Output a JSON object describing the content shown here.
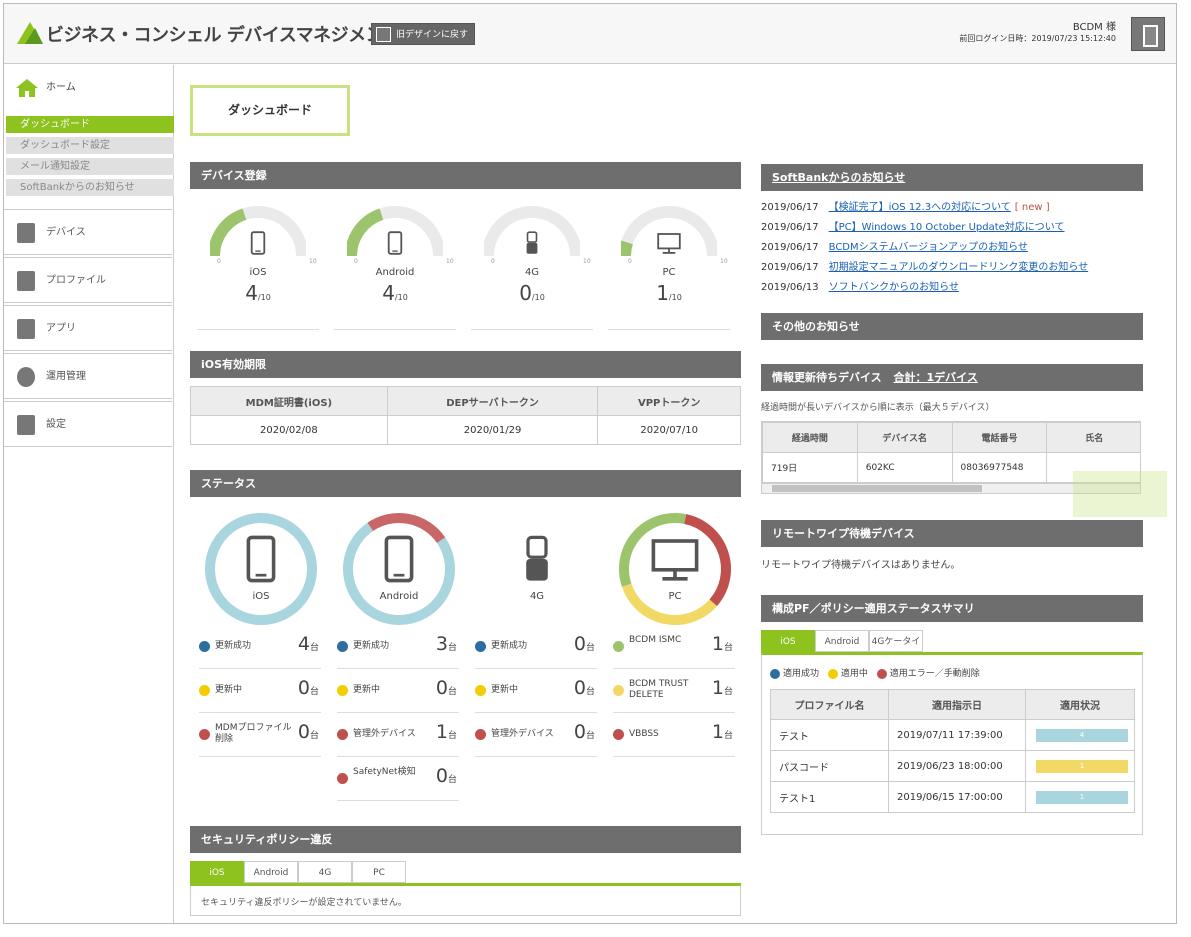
{
  "header": {
    "app_title": "ビジネス・コンシェル デバイスマネジメント",
    "old_design_label": "旧デザインに戻す",
    "user": "BCDM 様",
    "last_login": "前回ログイン日時：2019/07/23 15:12:40"
  },
  "sidebar": {
    "home": "ホーム",
    "sub_items": [
      "ダッシュボード",
      "ダッシュボード設定",
      "メール通知設定",
      "SoftBankからのお知らせ"
    ],
    "nav_items": [
      "デバイス",
      "プロファイル",
      "アプリ",
      "運用管理",
      "設定"
    ]
  },
  "page_title": "ダッシュボード",
  "device_reg": {
    "title": "デバイス登録",
    "min_label": "0",
    "max_label": "10",
    "unit": "/10",
    "gauges": [
      {
        "label": "iOS",
        "value": 4,
        "fraction": 0.4,
        "icon": "smartphone-icon"
      },
      {
        "label": "Android",
        "value": 4,
        "fraction": 0.4,
        "icon": "smartphone-icon"
      },
      {
        "label": "4G",
        "value": 0,
        "fraction": 0.0,
        "icon": "feature-phone-icon"
      },
      {
        "label": "PC",
        "value": 1,
        "fraction": 0.1,
        "icon": "monitor-icon"
      }
    ]
  },
  "ios_expiry": {
    "title": "iOS有効期限",
    "headers": [
      "MDM証明書(iOS)",
      "DEPサーバトークン",
      "VPPトークン"
    ],
    "values": [
      "2020/02/08",
      "2020/01/29",
      "2020/07/10"
    ]
  },
  "status": {
    "title": "ステータス",
    "unit": "台",
    "columns": [
      {
        "label": "iOS",
        "icon": "smartphone-icon",
        "rows": [
          {
            "label": "更新成功",
            "value": "4",
            "icon": "check-icon"
          },
          {
            "label": "更新中",
            "value": "0",
            "icon": "question-icon"
          },
          {
            "label": "MDMプロファイル削除",
            "value": "0",
            "icon": "warning-icon"
          }
        ]
      },
      {
        "label": "Android",
        "icon": "smartphone-icon",
        "rows": [
          {
            "label": "更新成功",
            "value": "3",
            "icon": "check-icon"
          },
          {
            "label": "更新中",
            "value": "0",
            "icon": "question-icon"
          },
          {
            "label": "管理外デバイス",
            "value": "1",
            "icon": "warning-icon"
          },
          {
            "label": "SafetyNet検知",
            "value": "0",
            "icon": "warning-icon"
          }
        ]
      },
      {
        "label": "4G",
        "icon": "feature-phone-icon",
        "rows": [
          {
            "label": "更新成功",
            "value": "0",
            "icon": "check-icon"
          },
          {
            "label": "更新中",
            "value": "0",
            "icon": "question-icon"
          },
          {
            "label": "管理外デバイス",
            "value": "0",
            "icon": "warning-icon"
          }
        ]
      },
      {
        "label": "PC",
        "icon": "monitor-icon",
        "rows": [
          {
            "label": "BCDM ISMC",
            "value": "1",
            "color": "#9bc46d"
          },
          {
            "label": "BCDM TRUST DELETE",
            "value": "1",
            "color": "#f2d865"
          },
          {
            "label": "VBBSS",
            "value": "1",
            "color": "#c0504d"
          }
        ]
      }
    ],
    "colors": {
      "ios_ok": "#a9d5df",
      "android_ok": "#a9d5df",
      "android_warn": "#c96667",
      "pc_green": "#9bc46d",
      "pc_yellow": "#f2d865",
      "pc_red": "#c0504d"
    }
  },
  "security": {
    "title": "セキュリティポリシー違反",
    "tabs": [
      "iOS",
      "Android",
      "4G",
      "PC"
    ],
    "active_tab": "iOS",
    "empty_message": "セキュリティ違反ポリシーが設定されていません。"
  },
  "softbank_news": {
    "title": "SoftBankからのお知らせ",
    "items": [
      {
        "date": "2019/06/17",
        "text": "【検証完了】iOS 12.3への対応について",
        "badge": "[ new ]"
      },
      {
        "date": "2019/06/17",
        "text": "【PC】Windows 10 October Update対応について",
        "badge": ""
      },
      {
        "date": "2019/06/17",
        "text": "BCDMシステムバージョンアップのお知らせ",
        "badge": ""
      },
      {
        "date": "2019/06/17",
        "text": "初期設定マニュアルのダウンロードリンク変更のお知らせ",
        "badge": ""
      },
      {
        "date": "2019/06/13",
        "text": "ソフトバンクからのお知らせ",
        "badge": ""
      }
    ]
  },
  "other_news": {
    "title": "その他のお知らせ"
  },
  "pending": {
    "title": "情報更新待ちデバイス",
    "total": "合計：1デバイス",
    "note": "経過時間が長いデバイスから順に表示（最大５デバイス）",
    "headers": [
      "経過時間",
      "デバイス名",
      "電話番号",
      "氏名"
    ],
    "rows": [
      [
        "719日",
        "602KC",
        "08036977548",
        ""
      ]
    ]
  },
  "remote_wipe": {
    "title": "リモートワイプ待機デバイス",
    "message": "リモートワイプ待機デバイスはありません。"
  },
  "policy_summary": {
    "title": "構成PF／ポリシー適用ステータスサマリ",
    "tabs": [
      "iOS",
      "Android",
      "4Gケータイ"
    ],
    "active_tab": "iOS",
    "legend": [
      "適用成功",
      "適用中",
      "適用エラー／手動削除"
    ],
    "headers": [
      "プロファイル名",
      "適用指示日",
      "適用状況"
    ],
    "rows": [
      {
        "name": "テスト",
        "date": "2019/07/11 17:39:00",
        "count": "4",
        "color": "#a9d5df"
      },
      {
        "name": "パスコード",
        "date": "2019/06/23 18:00:00",
        "count": "1",
        "color": "#f2d865"
      },
      {
        "name": "テスト1",
        "date": "2019/06/15 17:00:00",
        "count": "1",
        "color": "#a9d5df"
      }
    ]
  }
}
